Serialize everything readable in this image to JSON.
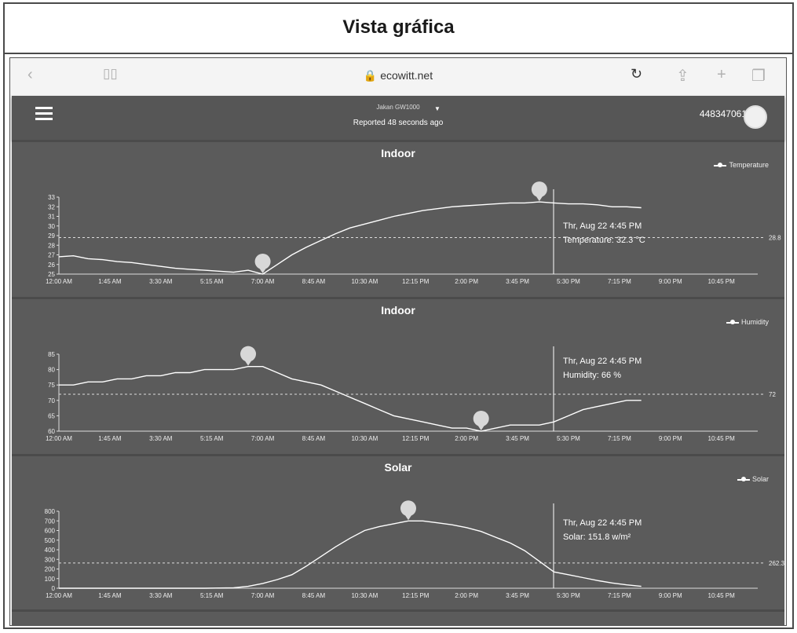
{
  "page": {
    "heading": "Vista gráfica"
  },
  "browser": {
    "url": "ecowitt.net",
    "lock_icon": "lock-icon",
    "back_icon": "chevron-left-icon",
    "bookmarks_icon": "book-icon",
    "reload_icon": "reload-icon",
    "share_icon": "share-icon",
    "add_icon": "plus-icon",
    "tabs_icon": "tabs-icon"
  },
  "app": {
    "station": "Jakan GW1000",
    "reported": "Reported 48 seconds ago",
    "account": "448347061"
  },
  "x_axis_labels": [
    "12:00 AM",
    "1:45 AM",
    "3:30 AM",
    "5:15 AM",
    "7:00 AM",
    "8:45 AM",
    "10:30 AM",
    "12:15 PM",
    "2:00 PM",
    "3:45 PM",
    "5:30 PM",
    "7:15 PM",
    "9:00 PM",
    "10:45 PM"
  ],
  "chart_data": [
    {
      "type": "line",
      "title": "Indoor",
      "series": [
        {
          "name": "Temperature",
          "x_hours": [
            0,
            0.5,
            1,
            1.5,
            2,
            2.5,
            3,
            3.5,
            4,
            4.5,
            5,
            5.5,
            6,
            6.5,
            7,
            7.5,
            8,
            8.5,
            9,
            9.5,
            10,
            10.5,
            11,
            11.5,
            12,
            12.5,
            13,
            13.5,
            14,
            14.5,
            15,
            15.5,
            16,
            16.5,
            17,
            17.5,
            18,
            18.5,
            19,
            19.5,
            20
          ],
          "values": [
            26.8,
            26.9,
            26.6,
            26.5,
            26.3,
            26.2,
            26.0,
            25.8,
            25.6,
            25.5,
            25.4,
            25.3,
            25.2,
            25.4,
            25.0,
            26.0,
            27.0,
            27.8,
            28.5,
            29.2,
            29.8,
            30.2,
            30.6,
            31.0,
            31.3,
            31.6,
            31.8,
            32.0,
            32.1,
            32.2,
            32.3,
            32.4,
            32.4,
            32.5,
            32.4,
            32.3,
            32.3,
            32.2,
            32.0,
            32.0,
            31.9
          ]
        }
      ],
      "ylim": [
        25,
        33
      ],
      "y_ticks": [
        25,
        26,
        27,
        28,
        29,
        30,
        31,
        32,
        33
      ],
      "y_tick_labels": [
        "25",
        "26",
        "27",
        "28",
        "29",
        "30",
        "31",
        "32",
        "33"
      ],
      "average": 28.8,
      "average_label": "28.8",
      "tooltip_date": "Thr, Aug 22 4:45 PM",
      "tooltip_value": "Temperature: 32.3 °C"
    },
    {
      "type": "line",
      "title": "Indoor",
      "series": [
        {
          "name": "Humidity",
          "x_hours": [
            0,
            0.5,
            1,
            1.5,
            2,
            2.5,
            3,
            3.5,
            4,
            4.5,
            5,
            5.5,
            6,
            6.5,
            7,
            7.5,
            8,
            8.5,
            9,
            9.5,
            10,
            10.5,
            11,
            11.5,
            12,
            12.5,
            13,
            13.5,
            14,
            14.5,
            15,
            15.5,
            16,
            16.5,
            17,
            17.5,
            18,
            18.5,
            19,
            19.5,
            20
          ],
          "values": [
            75,
            75,
            76,
            76,
            77,
            77,
            78,
            78,
            79,
            79,
            80,
            80,
            80,
            81,
            81,
            79,
            77,
            76,
            75,
            73,
            71,
            69,
            67,
            65,
            64,
            63,
            62,
            61,
            61,
            60,
            61,
            62,
            62,
            62,
            63,
            65,
            67,
            68,
            69,
            70,
            70
          ]
        }
      ],
      "ylim": [
        60,
        85
      ],
      "y_ticks": [
        60,
        65,
        70,
        75,
        80,
        85
      ],
      "y_tick_labels": [
        "60",
        "65",
        "70",
        "75",
        "80",
        "85"
      ],
      "average": 72,
      "average_label": "72",
      "tooltip_date": "Thr, Aug 22 4:45 PM",
      "tooltip_value": "Humidity: 66 %"
    },
    {
      "type": "line",
      "title": "Solar",
      "series": [
        {
          "name": "Solar",
          "x_hours": [
            0,
            1,
            2,
            3,
            4,
            5,
            6,
            6.5,
            7,
            7.5,
            8,
            8.5,
            9,
            9.5,
            10,
            10.5,
            11,
            11.5,
            12,
            12.5,
            13,
            13.5,
            14,
            14.5,
            15,
            15.5,
            16,
            16.5,
            17,
            17.5,
            18,
            18.5,
            19,
            19.5,
            20
          ],
          "values": [
            0,
            0,
            0,
            0,
            0,
            0,
            5,
            20,
            50,
            90,
            140,
            230,
            330,
            430,
            520,
            600,
            640,
            670,
            700,
            700,
            680,
            660,
            630,
            590,
            530,
            470,
            390,
            280,
            170,
            140,
            110,
            80,
            55,
            35,
            20
          ]
        }
      ],
      "ylim": [
        0,
        800
      ],
      "y_ticks": [
        0,
        100,
        200,
        300,
        400,
        500,
        600,
        700,
        800
      ],
      "y_tick_labels": [
        "0",
        "100",
        "200",
        "300",
        "400",
        "500",
        "600",
        "700",
        "800"
      ],
      "average": 262.3,
      "average_label": "262.3",
      "tooltip_date": "Thr, Aug 22 4:45 PM",
      "tooltip_value": "Solar: 151.8 w/m²"
    }
  ]
}
